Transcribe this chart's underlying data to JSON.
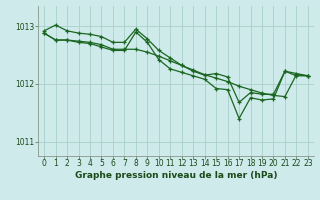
{
  "title": "Graphe pression niveau de la mer (hPa)",
  "background_color": "#ceeaea",
  "grid_color": "#a8d0c8",
  "line_color": "#1a6620",
  "xlim": [
    -0.5,
    23.5
  ],
  "ylim": [
    1010.75,
    1013.35
  ],
  "yticks": [
    1011,
    1012,
    1013
  ],
  "xticks": [
    0,
    1,
    2,
    3,
    4,
    5,
    6,
    7,
    8,
    9,
    10,
    11,
    12,
    13,
    14,
    15,
    16,
    17,
    18,
    19,
    20,
    21,
    22,
    23
  ],
  "series1": [
    1012.92,
    1013.02,
    1012.92,
    1012.88,
    1012.86,
    1012.82,
    1012.72,
    1012.72,
    1012.95,
    1012.78,
    1012.58,
    1012.45,
    1012.32,
    1012.22,
    1012.15,
    1012.18,
    1012.12,
    1011.68,
    1011.85,
    1011.82,
    1011.82,
    1012.22,
    1012.18,
    1012.14
  ],
  "series2": [
    1012.88,
    1012.76,
    1012.76,
    1012.74,
    1012.72,
    1012.68,
    1012.6,
    1012.6,
    1012.6,
    1012.55,
    1012.48,
    1012.4,
    1012.32,
    1012.24,
    1012.16,
    1012.1,
    1012.04,
    1011.96,
    1011.9,
    1011.84,
    1011.8,
    1011.78,
    1012.16,
    1012.14
  ],
  "series3": [
    1012.88,
    1012.76,
    1012.76,
    1012.72,
    1012.7,
    1012.64,
    1012.58,
    1012.58,
    1012.9,
    1012.72,
    1012.42,
    1012.26,
    1012.2,
    1012.14,
    1012.08,
    1011.92,
    1011.9,
    1011.4,
    1011.76,
    1011.72,
    1011.74,
    1012.22,
    1012.14,
    1012.14
  ]
}
